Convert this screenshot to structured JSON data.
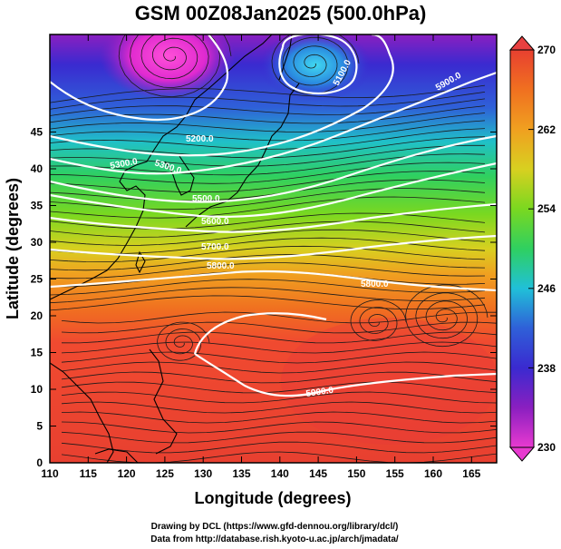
{
  "title": "GSM 00Z08Jan2025 (500.0hPa)",
  "x_axis": {
    "label": "Longitude (degrees)",
    "ticks": [
      "110",
      "115",
      "120",
      "125",
      "130",
      "135",
      "140",
      "145",
      "150",
      "155",
      "160",
      "165"
    ]
  },
  "y_axis": {
    "label": "Latitude (degrees)",
    "ticks": [
      "0",
      "5",
      "10",
      "15",
      "20",
      "25",
      "30",
      "35",
      "40",
      "45"
    ]
  },
  "colorbar": {
    "labels": [
      "270",
      "262",
      "254",
      "246",
      "238",
      "230"
    ],
    "units_range": [
      230,
      270
    ]
  },
  "contours": {
    "c5100": "5100.0",
    "c5200": "5200.0",
    "c5300": "5300.0",
    "c5500": "5500.0",
    "c5600": "5600.0",
    "c5700": "5700.0",
    "c5800": "5800.0",
    "c5900": "5900.0"
  },
  "credits": {
    "line1": "Drawing by DCL (https://www.gfd-dennou.org/library/dcl/)",
    "line2": "Data from http://database.rish.kyoto-u.ac.jp/arch/jmadata/"
  },
  "colors": {
    "frame": "#000000",
    "contour": "#ffffff",
    "streamline": "#1a1a1a",
    "coast": "#000000"
  }
}
